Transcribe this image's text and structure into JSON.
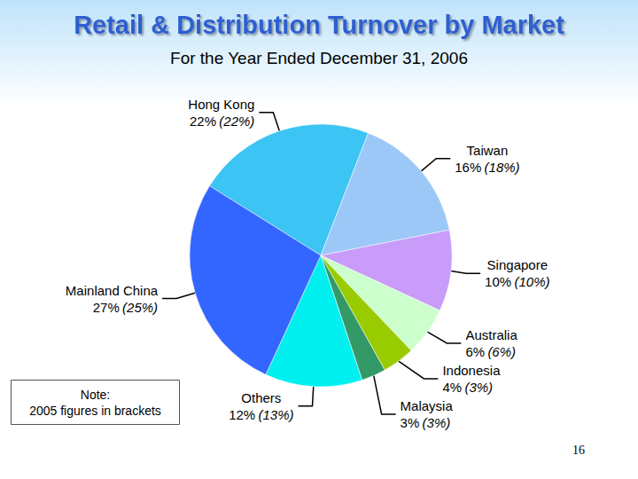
{
  "chart_data": {
    "type": "pie",
    "title": "Retail & Distribution Turnover by Market",
    "subtitle": "For the Year Ended December 31, 2006",
    "categories": [
      "Hong Kong",
      "Taiwan",
      "Singapore",
      "Australia",
      "Indonesia",
      "Malaysia",
      "Others",
      "Mainland China"
    ],
    "values": [
      22,
      16,
      10,
      6,
      4,
      3,
      12,
      27
    ],
    "value_labels": [
      "22%",
      "16%",
      "10%",
      "6%",
      "4%",
      "3%",
      "12%",
      "27%"
    ],
    "prior_value_labels": [
      "(22%)",
      "(18%)",
      "(10%)",
      "(6%)",
      "(3%)",
      "(3%)",
      "(13%)",
      "(25%)"
    ],
    "colors": [
      "#3cc4f4",
      "#9cc8f8",
      "#c89cf8",
      "#ccffcc",
      "#99cc00",
      "#339966",
      "#00f0f0",
      "#3366ff"
    ],
    "data_labels": true,
    "note": [
      "Note:",
      "2005 figures in brackets"
    ],
    "page_number": "16"
  }
}
